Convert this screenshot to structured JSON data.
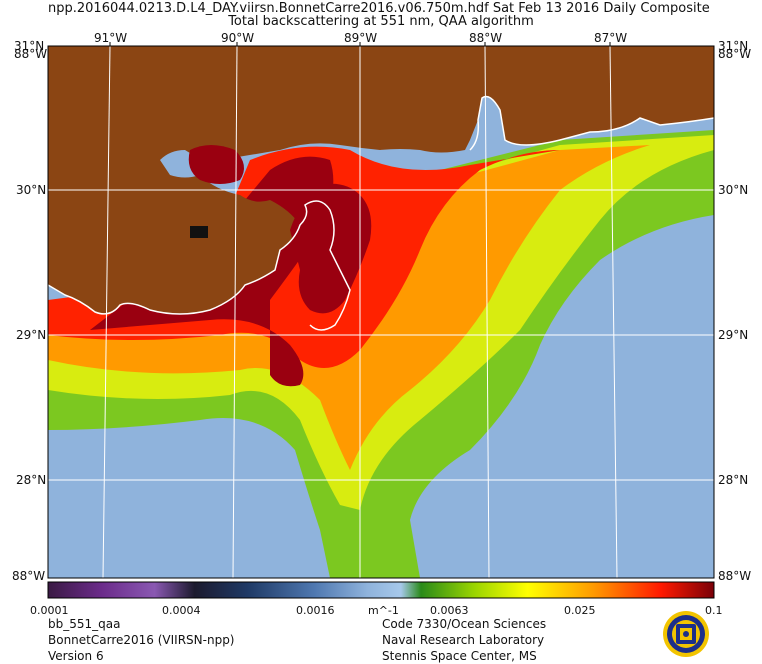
{
  "header": {
    "line1": "npp.2016044.0213.D.L4_DAY.viirsn.BonnetCarre2016.v06.750m.hdf      Sat Feb 13 2016 Daily Composite",
    "line2": "Total backscattering at 551 nm, QAA algorithm"
  },
  "axes": {
    "lon_top": [
      "91°W",
      "90°W",
      "89°W",
      "88°W",
      "87°W"
    ],
    "lat_left": [
      "31°N",
      "30°N",
      "29°N",
      "28°N",
      "88°W"
    ],
    "lat_right": [
      "31°N",
      "30°N",
      "29°N",
      "28°N",
      "88°W"
    ],
    "corner_tl": "88°W",
    "corner_tr": "88°W",
    "corner_bl": "88°W",
    "corner_br": "88°W"
  },
  "colorbar": {
    "ticks": [
      "0.0001",
      "0.0004",
      "0.0016",
      "m^-1",
      "0.0063",
      "0.025",
      "0.1"
    ]
  },
  "footer": {
    "left": [
      "bb_551_qaa",
      "BonnetCarre2016 (VIIRSN-npp)",
      "Version 6"
    ],
    "right": [
      "Code 7330/Ocean Sciences",
      "Naval Research Laboratory",
      "Stennis Space Center, MS"
    ]
  },
  "colors": {
    "land": "#8b4513",
    "ocean_clear": "#8fb3dc",
    "coast": "#ffffff"
  }
}
